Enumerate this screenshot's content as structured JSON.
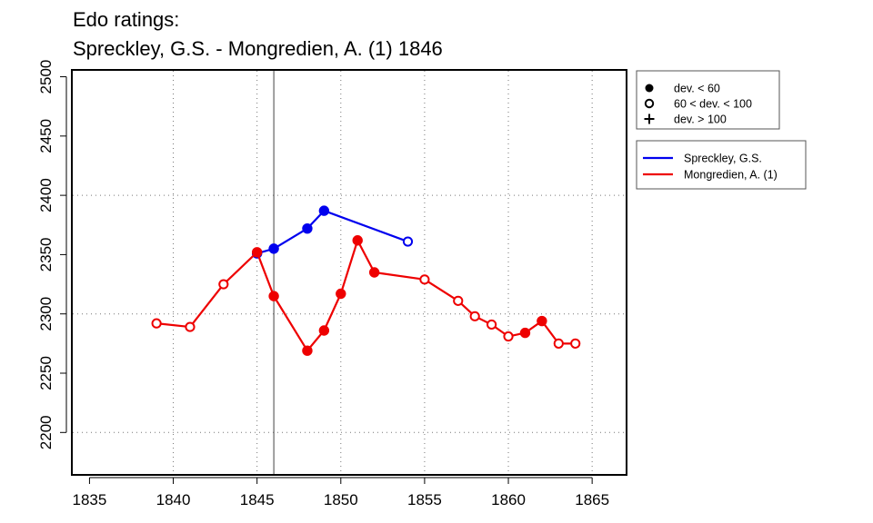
{
  "chart_data": {
    "type": "line",
    "title_line1": "Edo ratings:",
    "title_line2": "Spreckley, G.S. - Mongredien, A. (1) 1846",
    "xlabel": "",
    "ylabel": "",
    "xlim": [
      1834,
      1867
    ],
    "ylim": [
      2165,
      2505
    ],
    "x_ticks": [
      1835,
      1840,
      1845,
      1850,
      1855,
      1860,
      1865
    ],
    "y_ticks": [
      2200,
      2250,
      2300,
      2350,
      2400,
      2450,
      2500
    ],
    "x_tick_labels": [
      "1835",
      "1840",
      "1845",
      "1850",
      "1855",
      "1860",
      "1865"
    ],
    "y_tick_labels": [
      "2200",
      "2250",
      "2300",
      "2350",
      "2400",
      "2450",
      "2500"
    ],
    "grid_x": [
      1840,
      1845,
      1850,
      1855,
      1860,
      1865
    ],
    "grid_y": [
      2200,
      2300,
      2400
    ],
    "vertical_line_x": 1846,
    "marker_legend": [
      {
        "symbol": "filled-circle",
        "label": "dev. < 60"
      },
      {
        "symbol": "open-circle",
        "label": "60 < dev. < 100"
      },
      {
        "symbol": "plus",
        "label": "dev. > 100"
      }
    ],
    "series": [
      {
        "name": "Spreckley, G.S.",
        "color": "#0000ee",
        "points": [
          {
            "x": 1845,
            "y": 2351,
            "marker": "filled"
          },
          {
            "x": 1846,
            "y": 2355,
            "marker": "filled"
          },
          {
            "x": 1848,
            "y": 2372,
            "marker": "filled"
          },
          {
            "x": 1849,
            "y": 2387,
            "marker": "filled"
          },
          {
            "x": 1854,
            "y": 2361,
            "marker": "open"
          }
        ]
      },
      {
        "name": "Mongredien, A. (1)",
        "color": "#ee0000",
        "points": [
          {
            "x": 1839,
            "y": 2292,
            "marker": "open"
          },
          {
            "x": 1841,
            "y": 2289,
            "marker": "open"
          },
          {
            "x": 1843,
            "y": 2325,
            "marker": "open"
          },
          {
            "x": 1845,
            "y": 2352,
            "marker": "filled"
          },
          {
            "x": 1846,
            "y": 2315,
            "marker": "filled"
          },
          {
            "x": 1848,
            "y": 2269,
            "marker": "filled"
          },
          {
            "x": 1849,
            "y": 2286,
            "marker": "filled"
          },
          {
            "x": 1850,
            "y": 2317,
            "marker": "filled"
          },
          {
            "x": 1851,
            "y": 2362,
            "marker": "filled"
          },
          {
            "x": 1852,
            "y": 2335,
            "marker": "filled"
          },
          {
            "x": 1855,
            "y": 2329,
            "marker": "open"
          },
          {
            "x": 1857,
            "y": 2311,
            "marker": "open"
          },
          {
            "x": 1858,
            "y": 2298,
            "marker": "open"
          },
          {
            "x": 1859,
            "y": 2291,
            "marker": "open"
          },
          {
            "x": 1860,
            "y": 2281,
            "marker": "open"
          },
          {
            "x": 1861,
            "y": 2284,
            "marker": "filled"
          },
          {
            "x": 1862,
            "y": 2294,
            "marker": "filled"
          },
          {
            "x": 1863,
            "y": 2275,
            "marker": "open"
          },
          {
            "x": 1864,
            "y": 2275,
            "marker": "open"
          }
        ]
      }
    ]
  }
}
